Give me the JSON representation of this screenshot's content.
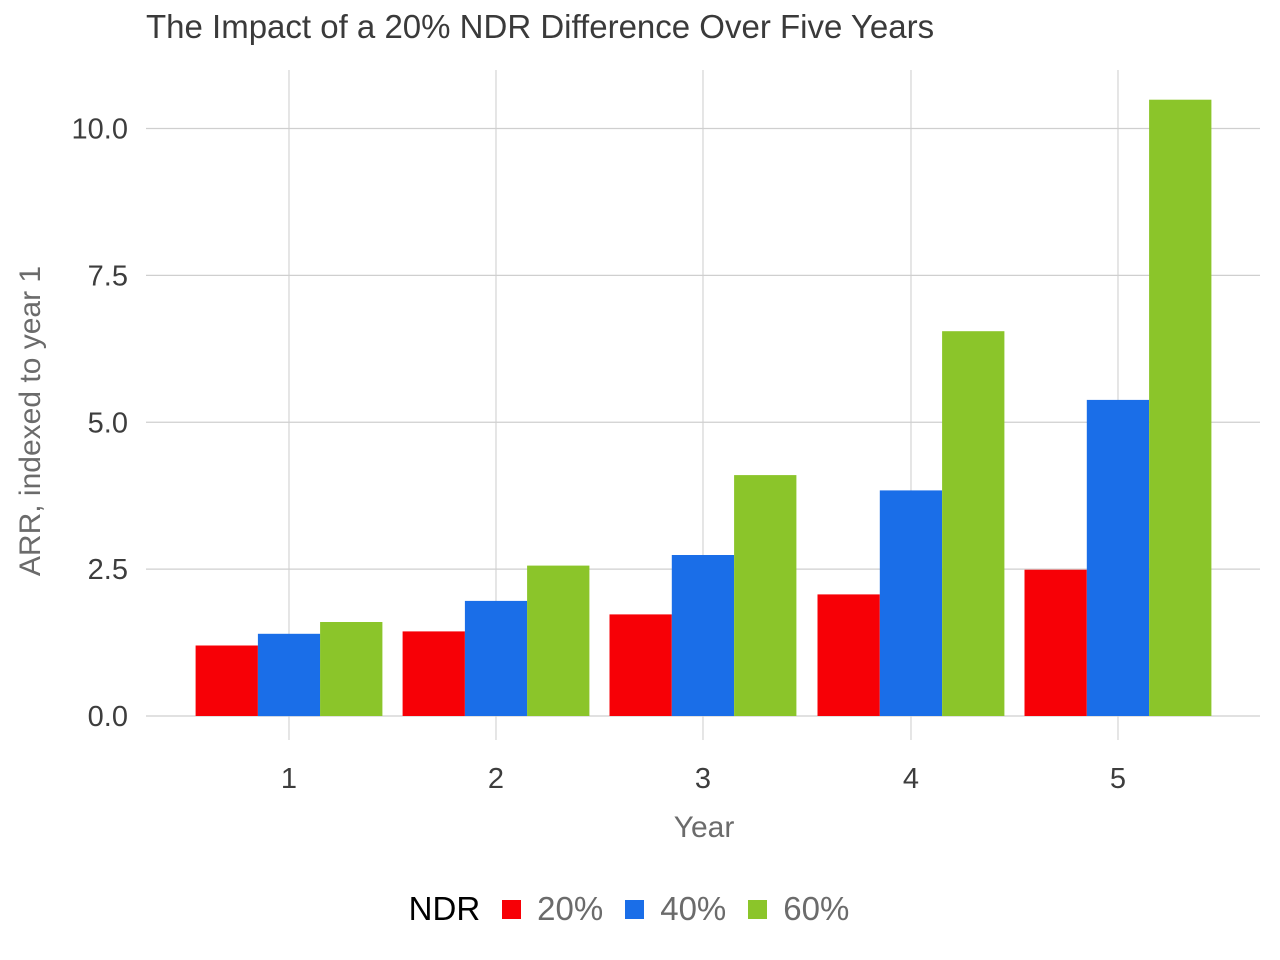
{
  "chart_data": {
    "type": "bar",
    "title": "The Impact of a 20% NDR Difference Over Five Years",
    "xlabel": "Year",
    "ylabel": "ARR, indexed to year 1",
    "categories": [
      "1",
      "2",
      "3",
      "4",
      "5"
    ],
    "yticks": [
      "0.0",
      "2.5",
      "5.0",
      "7.5",
      "10.0"
    ],
    "ylim": [
      0,
      10.5
    ],
    "grid": true,
    "legend": {
      "title": "NDR",
      "position": "bottom"
    },
    "series": [
      {
        "name": "20%",
        "color": "#f70006",
        "values": [
          1.2,
          1.44,
          1.73,
          2.07,
          2.49
        ]
      },
      {
        "name": "40%",
        "color": "#1a6ee8",
        "values": [
          1.4,
          1.96,
          2.74,
          3.84,
          5.38
        ]
      },
      {
        "name": "60%",
        "color": "#8bc52a",
        "values": [
          1.6,
          2.56,
          4.1,
          6.55,
          10.49
        ]
      }
    ]
  }
}
